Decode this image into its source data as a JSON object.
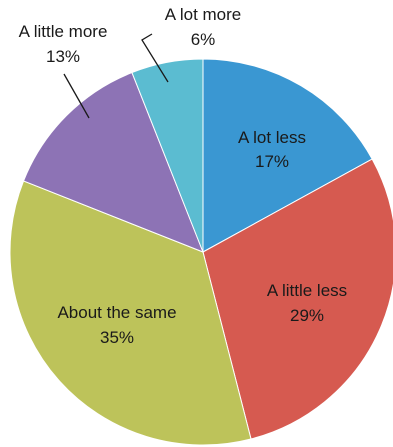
{
  "chart_data": {
    "type": "pie",
    "title": "",
    "slices": [
      {
        "label": "A lot less",
        "value": 17,
        "value_label": "17%",
        "color": "#3a97d2"
      },
      {
        "label": "A little less",
        "value": 29,
        "value_label": "29%",
        "color": "#d65a50"
      },
      {
        "label": "About the same",
        "value": 35,
        "value_label": "35%",
        "color": "#bdc35a"
      },
      {
        "label": "A little more",
        "value": 13,
        "value_label": "13%",
        "color": "#8d73b5"
      },
      {
        "label": "A lot more",
        "value": 6,
        "value_label": "6%",
        "color": "#5bbcd1"
      }
    ],
    "start_angle": "12 o'clock",
    "direction": "clockwise",
    "legend": "none"
  }
}
